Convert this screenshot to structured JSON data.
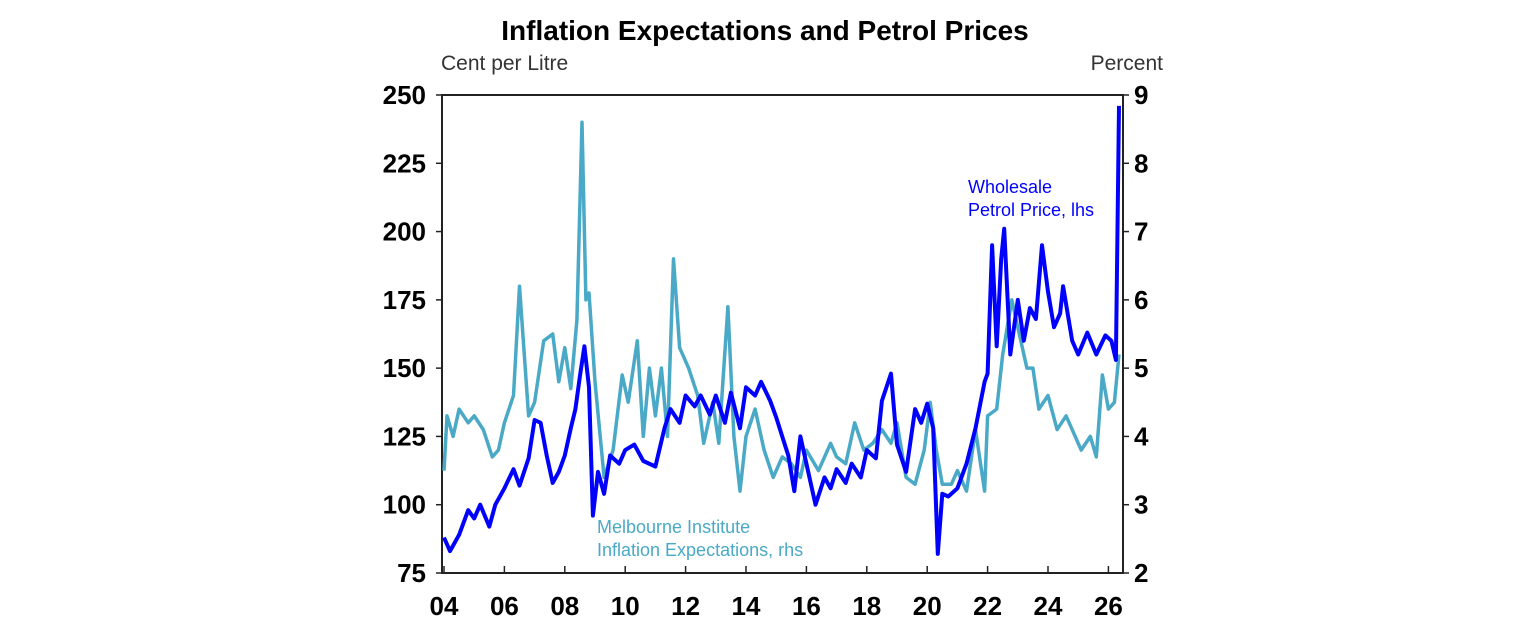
{
  "chart_data": {
    "type": "line",
    "title": "Inflation Expectations and Petrol Prices",
    "ylabel_left": "Cent per Litre",
    "ylabel_right": "Percent",
    "xlim": [
      2004,
      2026.6
    ],
    "ylim_left": [
      75,
      250
    ],
    "ylim_right": [
      2,
      9
    ],
    "x_ticks": [
      {
        "v": 2004,
        "label": "04"
      },
      {
        "v": 2006,
        "label": "06"
      },
      {
        "v": 2008,
        "label": "08"
      },
      {
        "v": 2010,
        "label": "10"
      },
      {
        "v": 2012,
        "label": "12"
      },
      {
        "v": 2014,
        "label": "14"
      },
      {
        "v": 2016,
        "label": "16"
      },
      {
        "v": 2018,
        "label": "18"
      },
      {
        "v": 2020,
        "label": "20"
      },
      {
        "v": 2022,
        "label": "22"
      },
      {
        "v": 2024,
        "label": "24"
      },
      {
        "v": 2026,
        "label": "26"
      }
    ],
    "y_ticks_left": [
      "75",
      "100",
      "125",
      "150",
      "175",
      "200",
      "225",
      "250"
    ],
    "y_ticks_right": [
      "2",
      "3",
      "4",
      "5",
      "6",
      "7",
      "8",
      "9"
    ],
    "grid": false,
    "colors": {
      "petrol": "#0000ff",
      "expectations": "#4aa9c6"
    },
    "series": [
      {
        "name": "Wholesale Petrol Price, lhs",
        "label_lines": [
          "Wholesale",
          "Petrol Price, lhs"
        ],
        "axis": "left",
        "x": [
          2004.0,
          2004.2,
          2004.5,
          2004.8,
          2005.0,
          2005.2,
          2005.5,
          2005.7,
          2006.0,
          2006.3,
          2006.5,
          2006.8,
          2007.0,
          2007.2,
          2007.4,
          2007.6,
          2007.8,
          2008.0,
          2008.2,
          2008.35,
          2008.5,
          2008.65,
          2008.8,
          2008.93,
          2009.1,
          2009.3,
          2009.5,
          2009.8,
          2010.0,
          2010.3,
          2010.6,
          2011.0,
          2011.3,
          2011.5,
          2011.8,
          2012.0,
          2012.3,
          2012.5,
          2012.8,
          2013.0,
          2013.3,
          2013.5,
          2013.8,
          2014.0,
          2014.3,
          2014.5,
          2014.8,
          2015.0,
          2015.2,
          2015.4,
          2015.6,
          2015.8,
          2016.0,
          2016.3,
          2016.6,
          2016.8,
          2017.0,
          2017.3,
          2017.5,
          2017.8,
          2018.0,
          2018.3,
          2018.5,
          2018.8,
          2019.0,
          2019.3,
          2019.6,
          2019.8,
          2020.0,
          2020.2,
          2020.35,
          2020.5,
          2020.7,
          2021.0,
          2021.3,
          2021.6,
          2021.9,
          2022.0,
          2022.15,
          2022.3,
          2022.45,
          2022.55,
          2022.75,
          2023.0,
          2023.2,
          2023.4,
          2023.6,
          2023.8,
          2024.0,
          2024.2,
          2024.4,
          2024.5,
          2024.8,
          2025.0,
          2025.3,
          2025.6,
          2025.9,
          2026.1,
          2026.25,
          2026.35
        ],
        "values": [
          88,
          83,
          89,
          98,
          95,
          100,
          92,
          100,
          106,
          113,
          107,
          117,
          131,
          130,
          118,
          108,
          112,
          118,
          128,
          135,
          147,
          158,
          143,
          96,
          112,
          104,
          118,
          115,
          120,
          122,
          116,
          114,
          128,
          135,
          130,
          140,
          136,
          140,
          133,
          140,
          130,
          141,
          128,
          143,
          140,
          145,
          138,
          132,
          125,
          118,
          105,
          125,
          115,
          100,
          110,
          106,
          113,
          108,
          115,
          110,
          120,
          117,
          138,
          148,
          122,
          112,
          135,
          130,
          137,
          128,
          82,
          104,
          103,
          106,
          115,
          128,
          145,
          148,
          195,
          158,
          190,
          201,
          155,
          175,
          160,
          172,
          168,
          195,
          178,
          165,
          170,
          180,
          160,
          155,
          163,
          155,
          162,
          160,
          153,
          246
        ]
      },
      {
        "name": "Melbourne Institute Inflation Expectations, rhs",
        "label_lines": [
          "Melbourne Institute",
          "Inflation Expectations, rhs"
        ],
        "axis": "right",
        "x": [
          2004.0,
          2004.1,
          2004.3,
          2004.5,
          2004.8,
          2005.0,
          2005.3,
          2005.6,
          2005.8,
          2006.0,
          2006.3,
          2006.5,
          2006.8,
          2007.0,
          2007.3,
          2007.6,
          2007.8,
          2008.0,
          2008.2,
          2008.4,
          2008.57,
          2008.7,
          2008.8,
          2009.0,
          2009.3,
          2009.6,
          2009.9,
          2010.1,
          2010.4,
          2010.6,
          2010.8,
          2011.0,
          2011.2,
          2011.4,
          2011.6,
          2011.8,
          2012.1,
          2012.4,
          2012.6,
          2012.9,
          2013.1,
          2013.4,
          2013.6,
          2013.8,
          2014.0,
          2014.3,
          2014.6,
          2014.9,
          2015.2,
          2015.5,
          2015.8,
          2016.0,
          2016.4,
          2016.8,
          2017.0,
          2017.3,
          2017.6,
          2017.9,
          2018.2,
          2018.5,
          2018.8,
          2019.0,
          2019.3,
          2019.6,
          2019.9,
          2020.1,
          2020.3,
          2020.5,
          2020.8,
          2021.0,
          2021.3,
          2021.6,
          2021.9,
          2022.0,
          2022.3,
          2022.5,
          2022.8,
          2023.0,
          2023.3,
          2023.5,
          2023.7,
          2024.0,
          2024.3,
          2024.6,
          2024.9,
          2025.1,
          2025.4,
          2025.6,
          2025.8,
          2026.0,
          2026.2,
          2026.35
        ],
        "values": [
          3.5,
          4.3,
          4.0,
          4.4,
          4.2,
          4.3,
          4.1,
          3.7,
          3.8,
          4.2,
          4.6,
          6.2,
          4.3,
          4.5,
          5.4,
          5.5,
          4.8,
          5.3,
          4.7,
          5.7,
          8.6,
          6.0,
          6.1,
          4.8,
          3.4,
          3.8,
          4.9,
          4.5,
          5.4,
          4.0,
          5.0,
          4.3,
          5.0,
          4.0,
          6.6,
          5.3,
          5.0,
          4.6,
          3.9,
          4.5,
          3.9,
          5.9,
          4.0,
          3.2,
          4.0,
          4.4,
          3.8,
          3.4,
          3.7,
          3.6,
          3.4,
          3.8,
          3.5,
          3.9,
          3.7,
          3.6,
          4.2,
          3.8,
          3.9,
          4.1,
          3.9,
          4.2,
          3.4,
          3.3,
          3.8,
          4.5,
          3.8,
          3.3,
          3.3,
          3.5,
          3.2,
          4.1,
          3.2,
          4.3,
          4.4,
          5.2,
          6.0,
          5.6,
          5.0,
          5.0,
          4.4,
          4.6,
          4.1,
          4.3,
          4.0,
          3.8,
          4.0,
          3.7,
          4.9,
          4.4,
          4.5,
          5.2
        ]
      }
    ]
  }
}
